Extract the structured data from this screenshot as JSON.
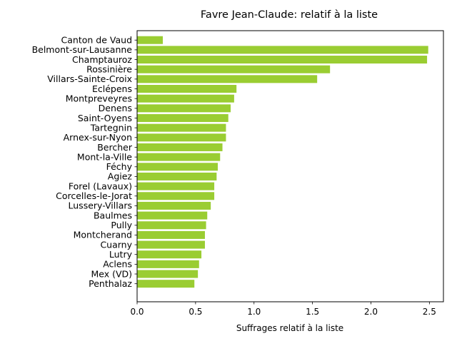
{
  "chart_data": {
    "type": "bar",
    "orientation": "horizontal",
    "title": "Favre Jean-Claude: relatif à la liste",
    "xlabel": "Suffrages relatif à la liste",
    "ylabel": "",
    "xlim": [
      0,
      2.62
    ],
    "xticks": [
      0.0,
      0.5,
      1.0,
      1.5,
      2.0,
      2.5
    ],
    "xtick_labels": [
      "0.0",
      "0.5",
      "1.0",
      "1.5",
      "2.0",
      "2.5"
    ],
    "bar_color": "#9acd32",
    "grid": false,
    "legend": "none",
    "categories": [
      "Canton de Vaud",
      "Belmont-sur-Lausanne",
      "Champtauroz",
      "Rossinière",
      "Villars-Sainte-Croix",
      "Eclépens",
      "Montpreveyres",
      "Denens",
      "Saint-Oyens",
      "Tartegnin",
      "Arnex-sur-Nyon",
      "Bercher",
      "Mont-la-Ville",
      "Féchy",
      "Agiez",
      "Forel (Lavaux)",
      "Corcelles-le-Jorat",
      "Lussery-Villars",
      "Baulmes",
      "Pully",
      "Montcherand",
      "Cuarny",
      "Lutry",
      "Aclens",
      "Mex (VD)",
      "Penthalaz"
    ],
    "values": [
      0.22,
      2.49,
      2.48,
      1.65,
      1.54,
      0.85,
      0.83,
      0.8,
      0.78,
      0.76,
      0.76,
      0.73,
      0.71,
      0.69,
      0.68,
      0.66,
      0.66,
      0.63,
      0.6,
      0.59,
      0.58,
      0.58,
      0.55,
      0.53,
      0.52,
      0.49
    ]
  }
}
